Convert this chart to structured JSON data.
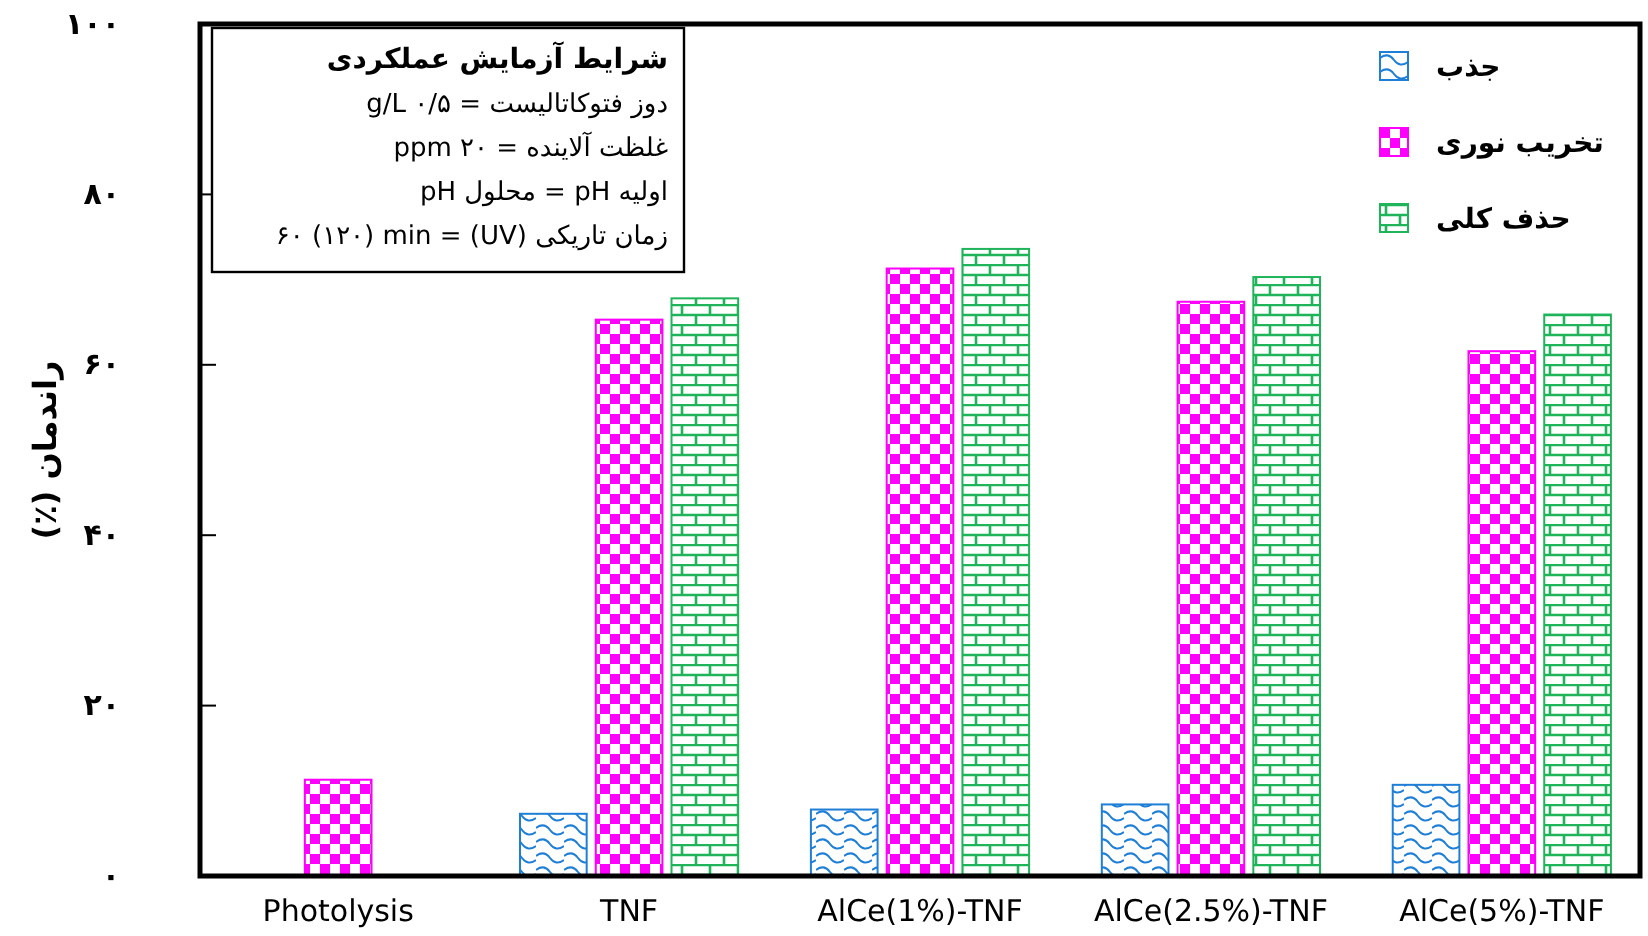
{
  "chart_data": {
    "type": "bar",
    "ylabel": "راندمان (٪)",
    "categories": [
      "Photolysis",
      "TNF",
      "AlCe(1%)-TNF",
      "AlCe(2.5%)-TNF",
      "AlCe(5%)-TNF"
    ],
    "series": [
      {
        "name": "جذب",
        "color": "#1f7fd6",
        "values": [
          null,
          7.3,
          7.8,
          8.4,
          10.7
        ]
      },
      {
        "name": "تخریب نوری",
        "color": "#ff00ff",
        "values": [
          11.3,
          65.3,
          71.3,
          67.4,
          61.6
        ]
      },
      {
        "name": "حذف کلی",
        "color": "#1fb35a",
        "values": [
          null,
          67.8,
          73.6,
          70.3,
          65.9
        ]
      }
    ],
    "ylim": [
      0,
      100
    ],
    "yticks": [
      {
        "value": 0,
        "label": "۰"
      },
      {
        "value": 20,
        "label": "۲۰"
      },
      {
        "value": 40,
        "label": "۴۰"
      },
      {
        "value": 60,
        "label": "۶۰"
      },
      {
        "value": 80,
        "label": "۸۰"
      },
      {
        "value": 100,
        "label": "۱۰۰"
      }
    ],
    "legend": "top right",
    "annotations": [
      "شرایط آزمایش عملکردی",
      "دوز فتوکاتالیست = ۰/۵ g/L",
      "غلظت آلاینده = ۲۰ ppm",
      "اولیه pH = محلول pH",
      "زمان تاریکی (UV) = ۶۰ (۱۲۰) min"
    ]
  }
}
